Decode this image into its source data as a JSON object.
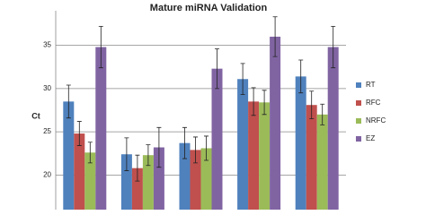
{
  "chart_data": {
    "type": "bar",
    "title": "Mature miRNA Validation",
    "y_label": "Ct",
    "categories": [
      null,
      null,
      null,
      null,
      null
    ],
    "series": [
      {
        "name": "RT",
        "color": "#4f81bd",
        "values": [
          28.5,
          22.4,
          23.7,
          31.1,
          31.4
        ],
        "errors": [
          1.9,
          1.9,
          1.8,
          1.8,
          1.9
        ]
      },
      {
        "name": "RFC",
        "color": "#c0504d",
        "values": [
          24.8,
          20.8,
          22.9,
          28.5,
          28.1
        ],
        "errors": [
          1.4,
          1.5,
          1.5,
          1.6,
          1.6
        ]
      },
      {
        "name": "NRFC",
        "color": "#9bbb59",
        "values": [
          22.6,
          22.3,
          23.1,
          28.4,
          27.0
        ],
        "errors": [
          1.2,
          1.2,
          1.4,
          1.4,
          1.2
        ]
      },
      {
        "name": "EZ",
        "color": "#8064a2",
        "values": [
          34.8,
          23.2,
          32.3,
          36.0,
          34.8
        ],
        "errors": [
          2.4,
          2.3,
          2.3,
          2.3,
          2.4
        ]
      }
    ],
    "ylim": [
      16,
      39
    ],
    "yticks": [
      20,
      25,
      30,
      35
    ],
    "grid": true,
    "legend": "right"
  }
}
